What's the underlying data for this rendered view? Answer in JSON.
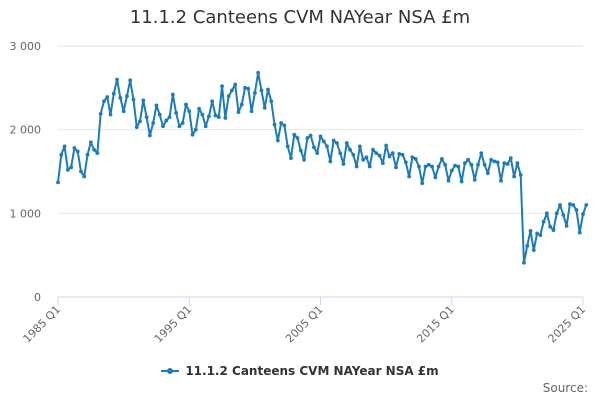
{
  "chart_data": {
    "type": "line",
    "title": "11.1.2 Canteens CVM NAYear NSA £m",
    "xlabel": "",
    "ylabel": "",
    "ylim": [
      0,
      3000
    ],
    "y_ticks": [
      "0",
      "1 000",
      "2 000",
      "3 000"
    ],
    "y_tick_values": [
      0,
      1000,
      2000,
      3000
    ],
    "x_ticks": [
      "1985 Q1",
      "1995 Q1",
      "2005 Q1",
      "2015 Q1",
      "2025 Q1"
    ],
    "x_tick_years": [
      1985,
      1995,
      2005,
      2015,
      2025
    ],
    "grid": true,
    "legend_position": "bottom-center",
    "series": [
      {
        "name": "11.1.2 Canteens CVM NAYear NSA £m",
        "color": "#1f7bb6",
        "start": "1985 Q1",
        "values": [
          1370,
          1700,
          1800,
          1520,
          1550,
          1780,
          1740,
          1500,
          1440,
          1700,
          1850,
          1760,
          1720,
          2190,
          2340,
          2390,
          2180,
          2430,
          2600,
          2380,
          2220,
          2400,
          2590,
          2360,
          2030,
          2100,
          2350,
          2150,
          1930,
          2080,
          2290,
          2180,
          2040,
          2110,
          2150,
          2420,
          2200,
          2040,
          2080,
          2300,
          2220,
          1940,
          2000,
          2250,
          2180,
          2040,
          2160,
          2340,
          2170,
          2150,
          2520,
          2140,
          2400,
          2470,
          2540,
          2210,
          2300,
          2500,
          2490,
          2220,
          2440,
          2680,
          2470,
          2260,
          2480,
          2340,
          2060,
          1870,
          2080,
          2050,
          1800,
          1660,
          1940,
          1900,
          1750,
          1640,
          1900,
          1930,
          1790,
          1720,
          1920,
          1860,
          1800,
          1620,
          1870,
          1840,
          1720,
          1590,
          1840,
          1760,
          1700,
          1560,
          1800,
          1640,
          1670,
          1560,
          1760,
          1720,
          1690,
          1600,
          1810,
          1680,
          1720,
          1550,
          1710,
          1700,
          1610,
          1440,
          1670,
          1650,
          1560,
          1360,
          1560,
          1580,
          1560,
          1430,
          1560,
          1650,
          1580,
          1390,
          1510,
          1570,
          1560,
          1380,
          1600,
          1640,
          1580,
          1400,
          1580,
          1720,
          1580,
          1480,
          1640,
          1620,
          1610,
          1390,
          1600,
          1590,
          1660,
          1440,
          1600,
          1460,
          410,
          610,
          790,
          560,
          760,
          740,
          900,
          1000,
          840,
          800,
          1000,
          1100,
          980,
          850,
          1110,
          1100,
          1040,
          770,
          990,
          1100
        ]
      }
    ]
  },
  "legend": {
    "label": "11.1.2 Canteens CVM NAYear NSA £m"
  },
  "credits": "Source:"
}
